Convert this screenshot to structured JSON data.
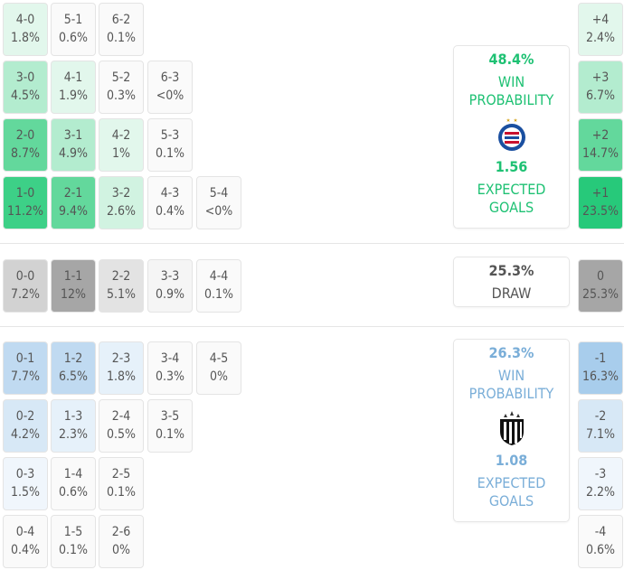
{
  "colors": {
    "home_accent": "#1ec173",
    "away_accent": "#7aaed8",
    "draw_text": "#555555"
  },
  "home_scores": [
    {
      "score": "4-0",
      "pct": "1.8%",
      "bg": "#e2f7ec"
    },
    {
      "score": "5-1",
      "pct": "0.6%",
      "bg": "#fafafa"
    },
    {
      "score": "6-2",
      "pct": "0.1%",
      "bg": "#fafafa"
    },
    {
      "score": "3-0",
      "pct": "4.5%",
      "bg": "#b3eccf"
    },
    {
      "score": "4-1",
      "pct": "1.9%",
      "bg": "#e2f7ec"
    },
    {
      "score": "5-2",
      "pct": "0.3%",
      "bg": "#fafafa"
    },
    {
      "score": "6-3",
      "pct": "<0%",
      "bg": "#fafafa"
    },
    {
      "score": "2-0",
      "pct": "8.7%",
      "bg": "#63d89c"
    },
    {
      "score": "3-1",
      "pct": "4.9%",
      "bg": "#b3eccf"
    },
    {
      "score": "4-2",
      "pct": "1%",
      "bg": "#e2f7ec"
    },
    {
      "score": "5-3",
      "pct": "0.1%",
      "bg": "#fafafa"
    },
    {
      "score": "1-0",
      "pct": "11.2%",
      "bg": "#3dd087"
    },
    {
      "score": "2-1",
      "pct": "9.4%",
      "bg": "#63d89c"
    },
    {
      "score": "3-2",
      "pct": "2.6%",
      "bg": "#d1f3e1"
    },
    {
      "score": "4-3",
      "pct": "0.4%",
      "bg": "#fafafa"
    },
    {
      "score": "5-4",
      "pct": "<0%",
      "bg": "#fafafa"
    }
  ],
  "draw_scores": [
    {
      "score": "0-0",
      "pct": "7.2%",
      "bg": "#d2d2d2"
    },
    {
      "score": "1-1",
      "pct": "12%",
      "bg": "#a6a6a6"
    },
    {
      "score": "2-2",
      "pct": "5.1%",
      "bg": "#e3e3e3"
    },
    {
      "score": "3-3",
      "pct": "0.9%",
      "bg": "#f5f5f5"
    },
    {
      "score": "4-4",
      "pct": "0.1%",
      "bg": "#fafafa"
    }
  ],
  "away_scores": [
    {
      "score": "0-1",
      "pct": "7.7%",
      "bg": "#c0daf1"
    },
    {
      "score": "1-2",
      "pct": "6.5%",
      "bg": "#c0daf1"
    },
    {
      "score": "2-3",
      "pct": "1.8%",
      "bg": "#e6f1fa"
    },
    {
      "score": "3-4",
      "pct": "0.3%",
      "bg": "#fafafa"
    },
    {
      "score": "4-5",
      "pct": "0%",
      "bg": "#fafafa"
    },
    {
      "score": "0-2",
      "pct": "4.2%",
      "bg": "#d7e8f6"
    },
    {
      "score": "1-3",
      "pct": "2.3%",
      "bg": "#e6f1fa"
    },
    {
      "score": "2-4",
      "pct": "0.5%",
      "bg": "#fafafa"
    },
    {
      "score": "3-5",
      "pct": "0.1%",
      "bg": "#fafafa"
    },
    {
      "score": "0-3",
      "pct": "1.5%",
      "bg": "#f0f6fc"
    },
    {
      "score": "1-4",
      "pct": "0.6%",
      "bg": "#fafafa"
    },
    {
      "score": "2-5",
      "pct": "0.1%",
      "bg": "#fafafa"
    },
    {
      "score": "0-4",
      "pct": "0.4%",
      "bg": "#fafafa"
    },
    {
      "score": "1-5",
      "pct": "0.1%",
      "bg": "#fafafa"
    },
    {
      "score": "2-6",
      "pct": "0%",
      "bg": "#fafafa"
    }
  ],
  "margins": [
    {
      "score": "+4",
      "pct": "2.4%",
      "bg": "#e2f7ec"
    },
    {
      "score": "+3",
      "pct": "6.7%",
      "bg": "#b3eccf"
    },
    {
      "score": "+2",
      "pct": "14.7%",
      "bg": "#63d89c"
    },
    {
      "score": "+1",
      "pct": "23.5%",
      "bg": "#27c97a"
    },
    {
      "score": "0",
      "pct": "25.3%",
      "bg": "#a6a6a6"
    },
    {
      "score": "-1",
      "pct": "16.3%",
      "bg": "#a8cdec"
    },
    {
      "score": "-2",
      "pct": "7.1%",
      "bg": "#d7e8f6"
    },
    {
      "score": "-3",
      "pct": "2.2%",
      "bg": "#f0f6fc"
    },
    {
      "score": "-4",
      "pct": "0.6%",
      "bg": "#fafafa"
    }
  ],
  "home_card": {
    "win_prob": "48.4%",
    "win_label": "WIN PROBABILITY",
    "expected_goals": "1.56",
    "xg_label": "EXPECTED GOALS"
  },
  "draw_card": {
    "prob": "25.3%",
    "label": "DRAW"
  },
  "away_card": {
    "win_prob": "26.3%",
    "win_label": "WIN PROBABILITY",
    "expected_goals": "1.08",
    "xg_label": "EXPECTED GOALS"
  }
}
